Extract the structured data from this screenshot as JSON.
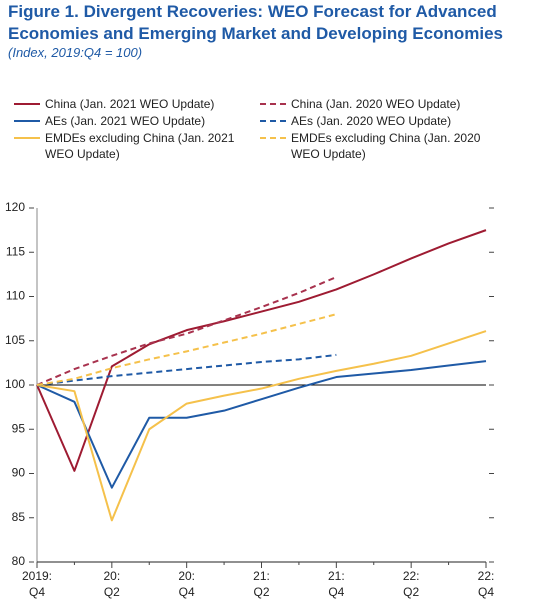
{
  "chart_data": {
    "type": "line",
    "title": "Figure 1.  Divergent Recoveries: WEO Forecast for Advanced Economies and Emerging Market and Developing Economies",
    "subtitle": "(Index, 2019:Q4 = 100)",
    "categories": [
      "2019:\nQ4",
      null,
      "20:\nQ2",
      null,
      "20:\nQ4",
      null,
      "21:\nQ2",
      null,
      "21:\nQ4",
      null,
      "22:\nQ2",
      null,
      "22:\nQ4"
    ],
    "series": [
      {
        "name": "China (Jan. 2021 WEO Update)",
        "color": "#9e1b32",
        "dashed": false,
        "values": [
          100,
          90.3,
          102.1,
          104.6,
          106.2,
          107.2,
          108.3,
          109.4,
          110.8,
          112.5,
          114.3,
          116,
          117.5
        ]
      },
      {
        "name": "AEs (Jan. 2021 WEO Update)",
        "color": "#1f5aa6",
        "dashed": false,
        "values": [
          100,
          98.1,
          88.4,
          96.3,
          96.3,
          97.1,
          98.4,
          99.7,
          100.9,
          101.3,
          101.7,
          102.2,
          102.7
        ]
      },
      {
        "name": "EMDEs excluding China (Jan. 2021 WEO Update)",
        "color": "#f5c14b",
        "dashed": false,
        "values": [
          100,
          99.3,
          84.7,
          95,
          97.9,
          98.8,
          99.6,
          100.7,
          101.6,
          102.4,
          103.3,
          104.7,
          106.1
        ]
      },
      {
        "name": "China (Jan. 2020 WEO Update)",
        "color": "#a8324e",
        "dashed": true,
        "values": [
          100,
          101.8,
          103.3,
          104.7,
          105.8,
          107.3,
          108.8,
          110.4,
          112.2,
          null,
          null,
          null,
          null
        ]
      },
      {
        "name": "AEs (Jan. 2020 WEO Update)",
        "color": "#1f5aa6",
        "dashed": true,
        "values": [
          100,
          100.5,
          101,
          101.4,
          101.8,
          102.2,
          102.6,
          102.9,
          103.4,
          null,
          null,
          null,
          null
        ]
      },
      {
        "name": "EMDEs excluding China (Jan. 2020 WEO Update)",
        "color": "#f5c14b",
        "dashed": true,
        "values": [
          100,
          100.7,
          101.9,
          102.9,
          103.8,
          104.8,
          105.8,
          106.9,
          108,
          null,
          null,
          null,
          null
        ]
      }
    ],
    "ylim": [
      80,
      120
    ],
    "yticks": [
      80,
      85,
      90,
      95,
      100,
      105,
      110,
      115,
      120
    ],
    "hline": 100,
    "grid": false
  }
}
